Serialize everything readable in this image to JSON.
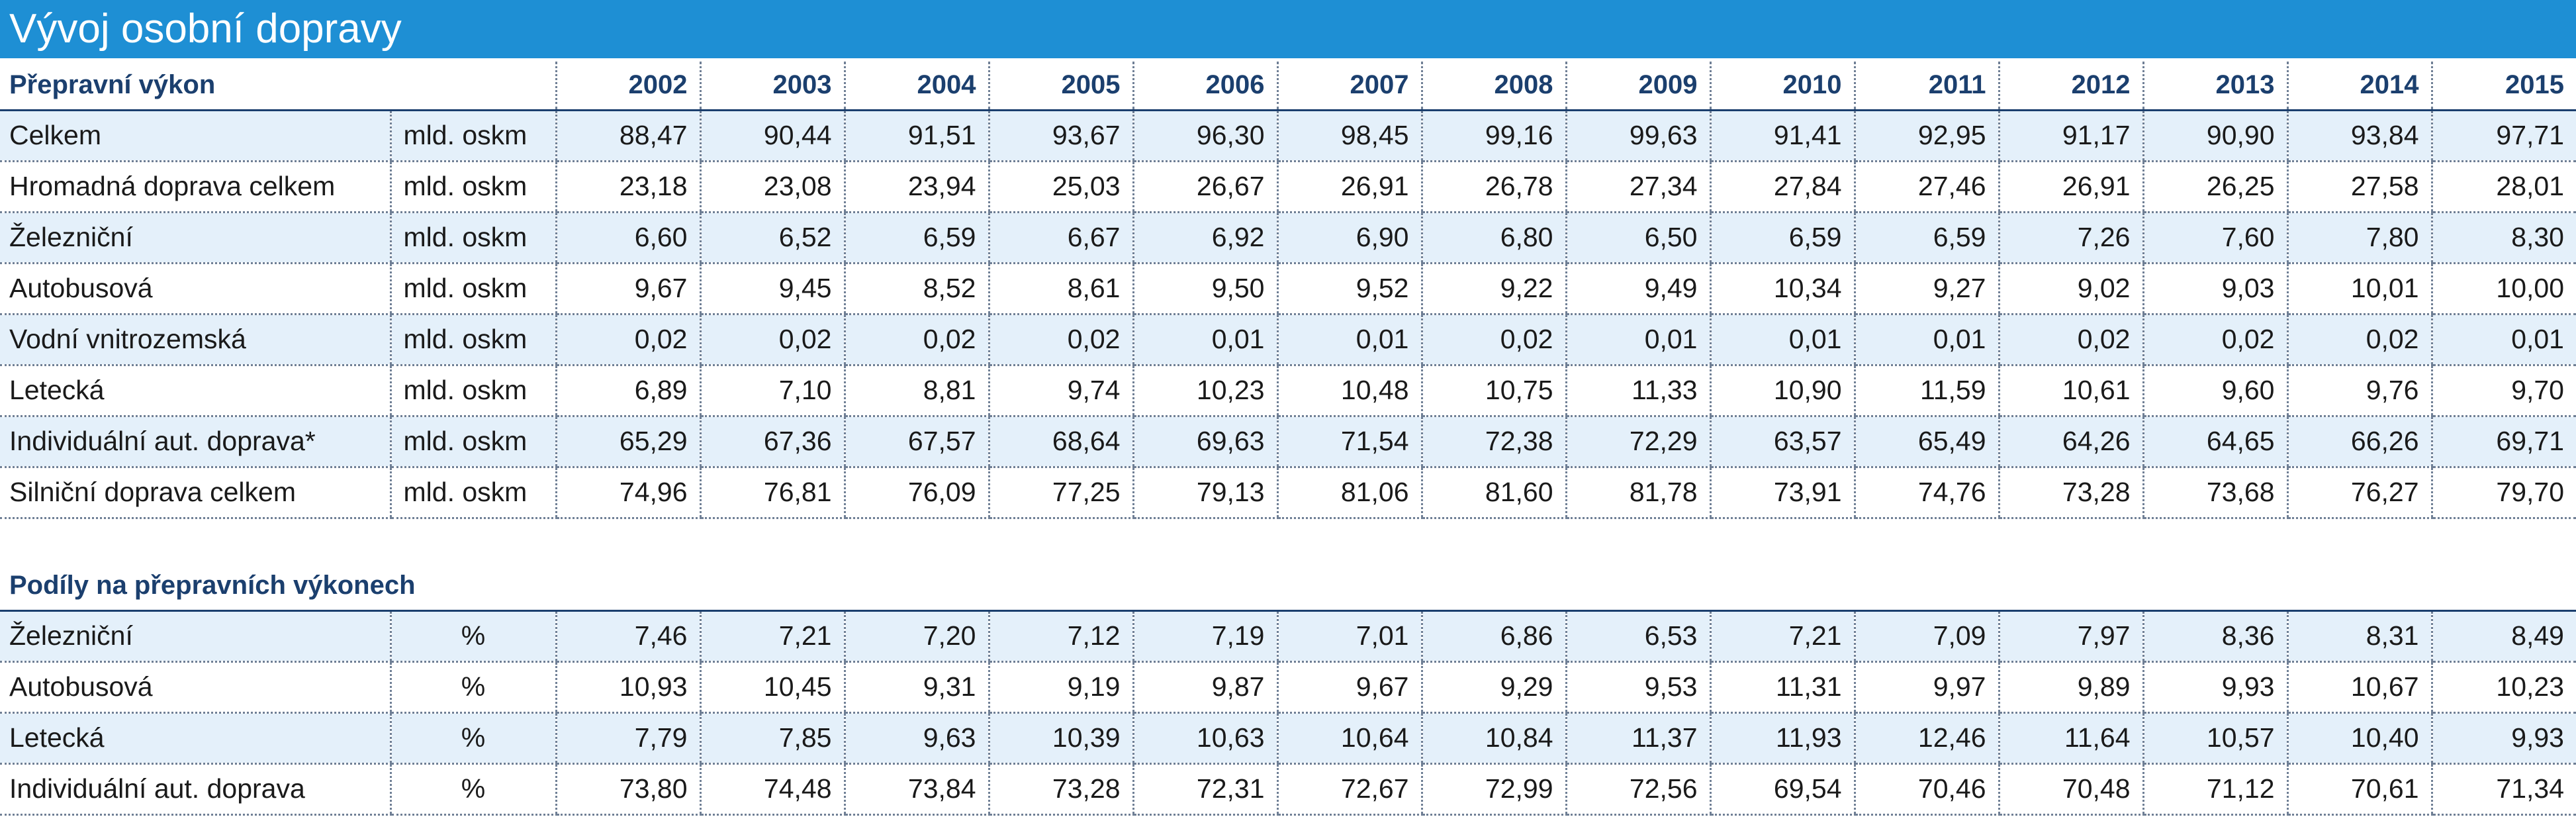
{
  "title": "Vývoj osobní dopravy",
  "section1": {
    "label": "Přepravní výkon",
    "years": [
      "2002",
      "2003",
      "2004",
      "2005",
      "2006",
      "2007",
      "2008",
      "2009",
      "2010",
      "2011",
      "2012",
      "2013",
      "2014",
      "2015"
    ],
    "rows": [
      {
        "name": "Celkem",
        "unit": "mld. oskm",
        "values": [
          "88,47",
          "90,44",
          "91,51",
          "93,67",
          "96,30",
          "98,45",
          "99,16",
          "99,63",
          "91,41",
          "92,95",
          "91,17",
          "90,90",
          "93,84",
          "97,71"
        ]
      },
      {
        "name": "Hromadná doprava celkem",
        "unit": "mld. oskm",
        "values": [
          "23,18",
          "23,08",
          "23,94",
          "25,03",
          "26,67",
          "26,91",
          "26,78",
          "27,34",
          "27,84",
          "27,46",
          "26,91",
          "26,25",
          "27,58",
          "28,01"
        ]
      },
      {
        "name": "Železniční",
        "unit": "mld. oskm",
        "values": [
          "6,60",
          "6,52",
          "6,59",
          "6,67",
          "6,92",
          "6,90",
          "6,80",
          "6,50",
          "6,59",
          "6,59",
          "7,26",
          "7,60",
          "7,80",
          "8,30"
        ]
      },
      {
        "name": "Autobusová",
        "unit": "mld. oskm",
        "values": [
          "9,67",
          "9,45",
          "8,52",
          "8,61",
          "9,50",
          "9,52",
          "9,22",
          "9,49",
          "10,34",
          "9,27",
          "9,02",
          "9,03",
          "10,01",
          "10,00"
        ]
      },
      {
        "name": "Vodní vnitrozemská",
        "unit": "mld. oskm",
        "values": [
          "0,02",
          "0,02",
          "0,02",
          "0,02",
          "0,01",
          "0,01",
          "0,02",
          "0,01",
          "0,01",
          "0,01",
          "0,02",
          "0,02",
          "0,02",
          "0,01"
        ]
      },
      {
        "name": "Letecká",
        "unit": "mld. oskm",
        "values": [
          "6,89",
          "7,10",
          "8,81",
          "9,74",
          "10,23",
          "10,48",
          "10,75",
          "11,33",
          "10,90",
          "11,59",
          "10,61",
          "9,60",
          "9,76",
          "9,70"
        ]
      },
      {
        "name": "Individuální aut. doprava*",
        "unit": "mld. oskm",
        "values": [
          "65,29",
          "67,36",
          "67,57",
          "68,64",
          "69,63",
          "71,54",
          "72,38",
          "72,29",
          "63,57",
          "65,49",
          "64,26",
          "64,65",
          "66,26",
          "69,71"
        ]
      },
      {
        "name": "Silniční doprava celkem",
        "unit": "mld. oskm",
        "values": [
          "74,96",
          "76,81",
          "76,09",
          "77,25",
          "79,13",
          "81,06",
          "81,60",
          "81,78",
          "73,91",
          "74,76",
          "73,28",
          "73,68",
          "76,27",
          "79,70"
        ]
      }
    ]
  },
  "section2": {
    "label": "Podíly na přepravních výkonech",
    "rows": [
      {
        "name": "Železniční",
        "unit": "%",
        "values": [
          "7,46",
          "7,21",
          "7,20",
          "7,12",
          "7,19",
          "7,01",
          "6,86",
          "6,53",
          "7,21",
          "7,09",
          "7,97",
          "8,36",
          "8,31",
          "8,49"
        ]
      },
      {
        "name": "Autobusová",
        "unit": "%",
        "values": [
          "10,93",
          "10,45",
          "9,31",
          "9,19",
          "9,87",
          "9,67",
          "9,29",
          "9,53",
          "11,31",
          "9,97",
          "9,89",
          "9,93",
          "10,67",
          "10,23"
        ]
      },
      {
        "name": "Letecká",
        "unit": "%",
        "values": [
          "7,79",
          "7,85",
          "9,63",
          "10,39",
          "10,63",
          "10,64",
          "10,84",
          "11,37",
          "11,93",
          "12,46",
          "11,64",
          "10,57",
          "10,40",
          "9,93"
        ]
      },
      {
        "name": "Individuální aut. doprava",
        "unit": "%",
        "values": [
          "73,80",
          "74,48",
          "73,84",
          "73,28",
          "72,31",
          "72,67",
          "72,99",
          "72,56",
          "69,54",
          "70,46",
          "70,48",
          "71,12",
          "70,61",
          "71,34"
        ]
      }
    ]
  },
  "colors": {
    "title_bar": "#1e8fd4",
    "header_text": "#1b3f6e",
    "row_shade": "#e4f0fa"
  }
}
